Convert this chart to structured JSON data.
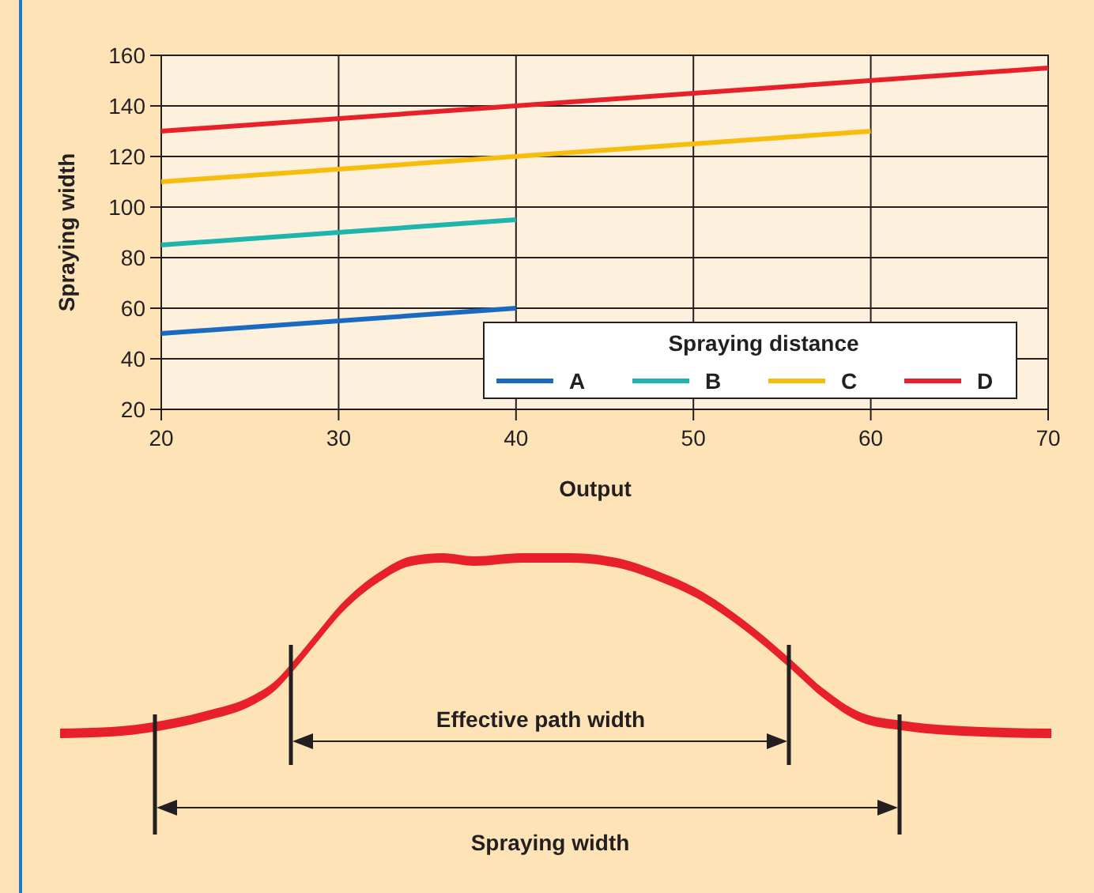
{
  "chart_data": {
    "type": "line",
    "xlabel": "Output",
    "ylabel": "Spraying width",
    "legend_title": "Spraying distance",
    "series": [
      {
        "name": "A",
        "color": "#1a6bc0",
        "x": [
          20,
          40
        ],
        "values": [
          50,
          60
        ]
      },
      {
        "name": "B",
        "color": "#1db5ac",
        "x": [
          20,
          40
        ],
        "values": [
          85,
          95
        ]
      },
      {
        "name": "C",
        "color": "#f8bc0c",
        "x": [
          20,
          60
        ],
        "values": [
          110,
          130
        ]
      },
      {
        "name": "D",
        "color": "#e8202a",
        "x": [
          20,
          70
        ],
        "values": [
          130,
          155
        ]
      }
    ],
    "xlim": [
      20,
      70
    ],
    "xticks": [
      20,
      30,
      40,
      50,
      60,
      70
    ],
    "ylim": [
      20,
      160
    ],
    "yticks": [
      20,
      40,
      60,
      80,
      100,
      120,
      140,
      160
    ],
    "grid": true,
    "legend": "bottom right",
    "marker": "none",
    "line_style": "solid",
    "annotations": [
      "Effective path width",
      "Spraying width"
    ]
  }
}
